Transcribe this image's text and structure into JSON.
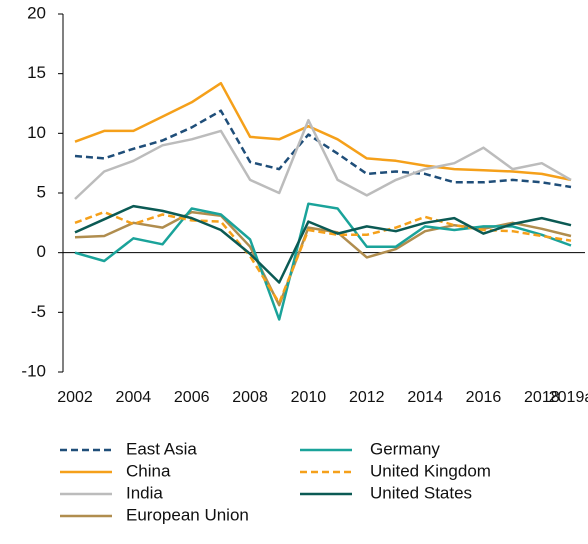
{
  "chart_data": {
    "type": "line",
    "categories": [
      "2002",
      null,
      "2004",
      null,
      "2006",
      null,
      "2008",
      null,
      "2010",
      null,
      "2012",
      null,
      "2014",
      null,
      "2016",
      null,
      "2018",
      "2019a"
    ],
    "ylim": [
      -10,
      20
    ],
    "yticks": [
      -10,
      -5,
      0,
      5,
      10,
      15,
      20
    ],
    "grid": false,
    "legend": "bottom",
    "series": [
      {
        "name": "East Asia",
        "color": "#1f4e79",
        "style": "dashed",
        "values": [
          8.1,
          7.9,
          8.7,
          9.4,
          10.5,
          11.9,
          7.6,
          7.0,
          9.9,
          8.3,
          6.6,
          6.8,
          6.6,
          5.9,
          5.9,
          6.1,
          5.9,
          5.5
        ]
      },
      {
        "name": "China",
        "color": "#f5a01a",
        "style": "solid",
        "values": [
          9.3,
          10.2,
          10.2,
          11.4,
          12.6,
          14.2,
          9.7,
          9.5,
          10.6,
          9.5,
          7.9,
          7.7,
          7.3,
          7.0,
          6.9,
          6.8,
          6.6,
          6.1
        ]
      },
      {
        "name": "India",
        "color": "#bcbcbc",
        "style": "solid",
        "values": [
          4.5,
          6.8,
          7.7,
          9.0,
          9.5,
          10.2,
          6.1,
          5.0,
          11.1,
          6.1,
          4.8,
          6.1,
          7.0,
          7.5,
          8.8,
          7.0,
          7.5,
          6.1
        ]
      },
      {
        "name": "European Union",
        "color": "#b08d4e",
        "style": "solid",
        "values": [
          1.3,
          1.4,
          2.5,
          2.1,
          3.4,
          3.1,
          0.5,
          -4.4,
          2.1,
          1.7,
          -0.4,
          0.3,
          1.8,
          2.3,
          2.0,
          2.5,
          2.0,
          1.4
        ]
      },
      {
        "name": "Germany",
        "color": "#1aa39a",
        "style": "solid",
        "values": [
          0.0,
          -0.7,
          1.2,
          0.7,
          3.7,
          3.2,
          1.1,
          -5.6,
          4.1,
          3.7,
          0.5,
          0.5,
          2.2,
          1.9,
          2.2,
          2.2,
          1.5,
          0.6
        ]
      },
      {
        "name": "United Kingdom",
        "color": "#f5a01a",
        "style": "dashed",
        "values": [
          2.5,
          3.4,
          2.4,
          3.2,
          2.7,
          2.6,
          -0.3,
          -4.2,
          1.9,
          1.5,
          1.5,
          2.1,
          3.0,
          2.3,
          1.9,
          1.8,
          1.4,
          1.0
        ]
      },
      {
        "name": "United States",
        "color": "#0b5a54",
        "style": "solid",
        "values": [
          1.7,
          2.8,
          3.9,
          3.5,
          2.9,
          1.9,
          -0.1,
          -2.5,
          2.6,
          1.6,
          2.2,
          1.8,
          2.5,
          2.9,
          1.6,
          2.4,
          2.9,
          2.3
        ]
      }
    ]
  }
}
